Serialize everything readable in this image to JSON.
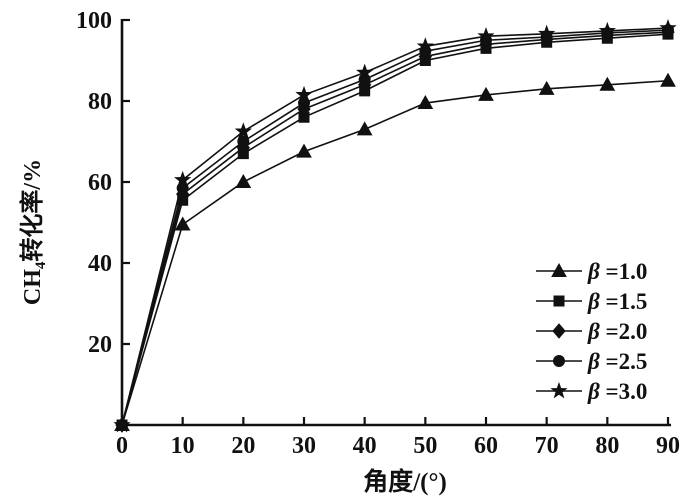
{
  "figure": {
    "background": "#ffffff",
    "ink_color": "#111111"
  },
  "chart_data": {
    "type": "line",
    "title": "",
    "xlabel": "角度/(°)",
    "ylabel": "CH4转化率/%",
    "ylabel_parts": {
      "prefix": "CH",
      "subscript": "4",
      "suffix": "转化率/%"
    },
    "x": [
      0,
      10,
      20,
      30,
      40,
      50,
      60,
      70,
      80,
      90
    ],
    "x_ticks": [
      0,
      10,
      20,
      30,
      40,
      50,
      60,
      70,
      80,
      90
    ],
    "y_ticks": [
      20,
      40,
      60,
      80,
      100
    ],
    "xlim": [
      0,
      90
    ],
    "ylim": [
      0,
      100
    ],
    "grid": false,
    "axes": "left-bottom-only",
    "legend_position": "inside-lower-right",
    "series": [
      {
        "name": "β =1.0",
        "marker": "triangle",
        "color": "#111111",
        "values": [
          0,
          49.5,
          60,
          67.5,
          73,
          79.5,
          81.5,
          83,
          84,
          85
        ]
      },
      {
        "name": "β =1.5",
        "marker": "square",
        "color": "#111111",
        "values": [
          0,
          55.5,
          67,
          76,
          82.5,
          90,
          93,
          94.5,
          95.5,
          96.5
        ]
      },
      {
        "name": "β =2.0",
        "marker": "diamond",
        "color": "#111111",
        "values": [
          0,
          57,
          68.5,
          78,
          84,
          91,
          94,
          95.2,
          96.2,
          97
        ]
      },
      {
        "name": "β =2.5",
        "marker": "circle",
        "color": "#111111",
        "values": [
          0,
          58.5,
          70,
          79.5,
          85.3,
          92.3,
          95,
          95.8,
          96.8,
          97.5
        ]
      },
      {
        "name": "β =3.0",
        "marker": "star",
        "color": "#111111",
        "values": [
          0,
          60.5,
          72.5,
          81.5,
          87,
          93.5,
          96,
          96.6,
          97.3,
          98
        ]
      }
    ]
  }
}
